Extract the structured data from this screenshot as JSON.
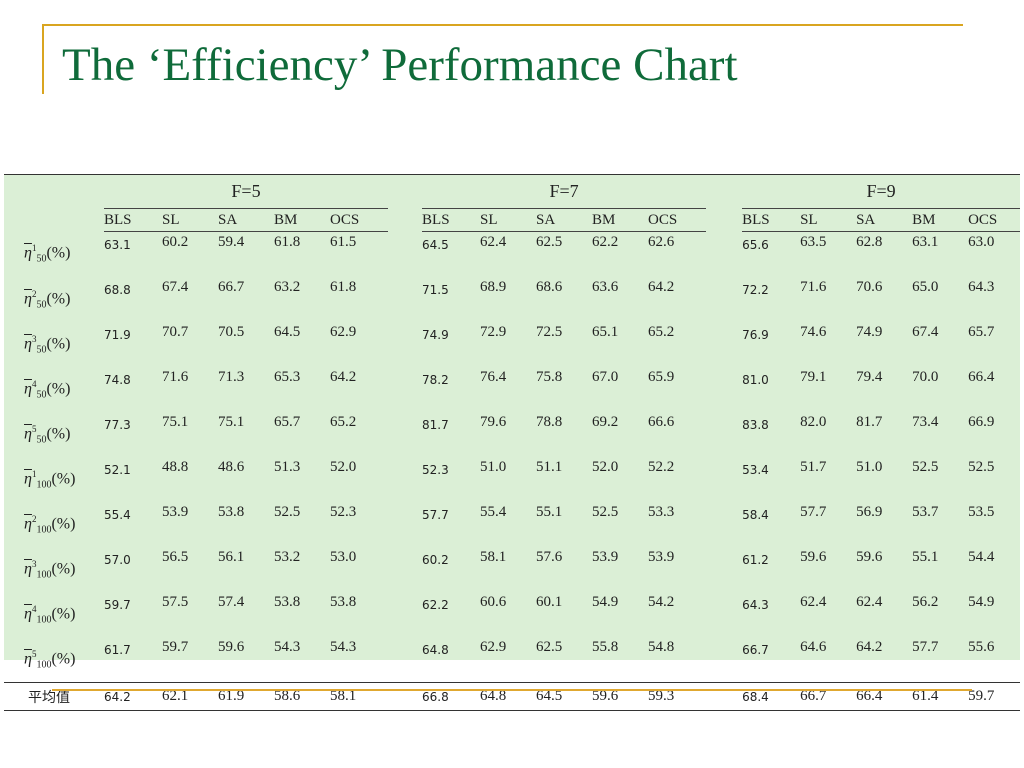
{
  "slide": {
    "title": "The ‘Efficiency’ Performance Chart"
  },
  "table": {
    "groups": [
      "F=5",
      "F=7",
      "F=9"
    ],
    "methods": [
      "BLS",
      "SL",
      "SA",
      "BM",
      "OCS"
    ],
    "label_symbol": "η",
    "label_suffix": "(%)",
    "rows": [
      {
        "sub": "50",
        "sup": "1",
        "values": [
          [
            "63.1",
            "60.2",
            "59.4",
            "61.8",
            "61.5"
          ],
          [
            "64.5",
            "62.4",
            "62.5",
            "62.2",
            "62.6"
          ],
          [
            "65.6",
            "63.5",
            "62.8",
            "63.1",
            "63.0"
          ]
        ]
      },
      {
        "sub": "50",
        "sup": "2",
        "values": [
          [
            "68.8",
            "67.4",
            "66.7",
            "63.2",
            "61.8"
          ],
          [
            "71.5",
            "68.9",
            "68.6",
            "63.6",
            "64.2"
          ],
          [
            "72.2",
            "71.6",
            "70.6",
            "65.0",
            "64.3"
          ]
        ]
      },
      {
        "sub": "50",
        "sup": "3",
        "values": [
          [
            "71.9",
            "70.7",
            "70.5",
            "64.5",
            "62.9"
          ],
          [
            "74.9",
            "72.9",
            "72.5",
            "65.1",
            "65.2"
          ],
          [
            "76.9",
            "74.6",
            "74.9",
            "67.4",
            "65.7"
          ]
        ]
      },
      {
        "sub": "50",
        "sup": "4",
        "values": [
          [
            "74.8",
            "71.6",
            "71.3",
            "65.3",
            "64.2"
          ],
          [
            "78.2",
            "76.4",
            "75.8",
            "67.0",
            "65.9"
          ],
          [
            "81.0",
            "79.1",
            "79.4",
            "70.0",
            "66.4"
          ]
        ]
      },
      {
        "sub": "50",
        "sup": "5",
        "values": [
          [
            "77.3",
            "75.1",
            "75.1",
            "65.7",
            "65.2"
          ],
          [
            "81.7",
            "79.6",
            "78.8",
            "69.2",
            "66.6"
          ],
          [
            "83.8",
            "82.0",
            "81.7",
            "73.4",
            "66.9"
          ]
        ]
      },
      {
        "sub": "100",
        "sup": "1",
        "values": [
          [
            "52.1",
            "48.8",
            "48.6",
            "51.3",
            "52.0"
          ],
          [
            "52.3",
            "51.0",
            "51.1",
            "52.0",
            "52.2"
          ],
          [
            "53.4",
            "51.7",
            "51.0",
            "52.5",
            "52.5"
          ]
        ]
      },
      {
        "sub": "100",
        "sup": "2",
        "values": [
          [
            "55.4",
            "53.9",
            "53.8",
            "52.5",
            "52.3"
          ],
          [
            "57.7",
            "55.4",
            "55.1",
            "52.5",
            "53.3"
          ],
          [
            "58.4",
            "57.7",
            "56.9",
            "53.7",
            "53.5"
          ]
        ]
      },
      {
        "sub": "100",
        "sup": "3",
        "values": [
          [
            "57.0",
            "56.5",
            "56.1",
            "53.2",
            "53.0"
          ],
          [
            "60.2",
            "58.1",
            "57.6",
            "53.9",
            "53.9"
          ],
          [
            "61.2",
            "59.6",
            "59.6",
            "55.1",
            "54.4"
          ]
        ]
      },
      {
        "sub": "100",
        "sup": "4",
        "values": [
          [
            "59.7",
            "57.5",
            "57.4",
            "53.8",
            "53.8"
          ],
          [
            "62.2",
            "60.6",
            "60.1",
            "54.9",
            "54.2"
          ],
          [
            "64.3",
            "62.4",
            "62.4",
            "56.2",
            "54.9"
          ]
        ]
      },
      {
        "sub": "100",
        "sup": "5",
        "values": [
          [
            "61.7",
            "59.7",
            "59.6",
            "54.3",
            "54.3"
          ],
          [
            "64.8",
            "62.9",
            "62.5",
            "55.8",
            "54.8"
          ],
          [
            "66.7",
            "64.6",
            "64.2",
            "57.7",
            "55.6"
          ]
        ]
      }
    ],
    "average_row": {
      "label": "平均值",
      "values": [
        [
          "64.2",
          "62.1",
          "61.9",
          "58.6",
          "58.1"
        ],
        [
          "66.8",
          "64.8",
          "64.5",
          "59.6",
          "59.3"
        ],
        [
          "68.4",
          "66.7",
          "66.4",
          "61.4",
          "59.7"
        ]
      ]
    }
  }
}
